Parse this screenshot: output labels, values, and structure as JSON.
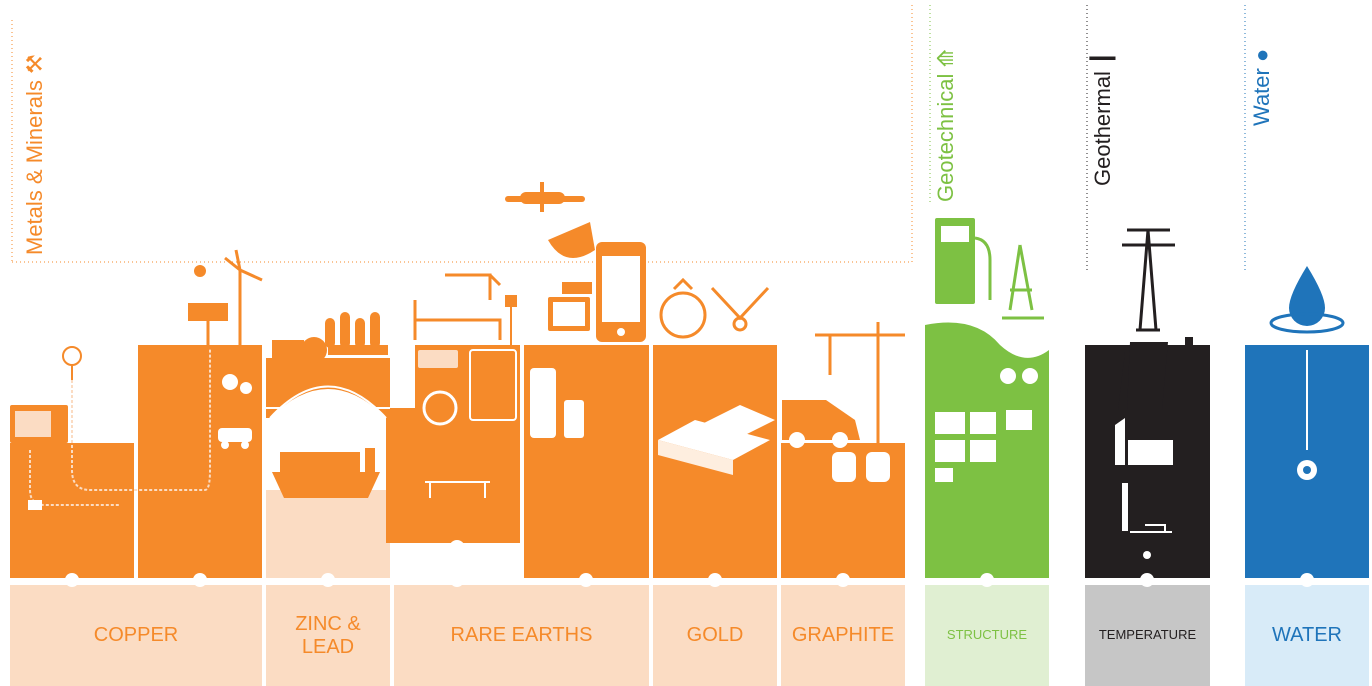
{
  "colors": {
    "metals": "#f58a2a",
    "metals_light": "#fbdcc3",
    "geotechnical": "#7dc143",
    "geotechnical_light": "#e0efd2",
    "geothermal": "#231f20",
    "geothermal_light": "#c6c6c6",
    "water": "#1f74ba",
    "water_light": "#d8ebf8"
  },
  "sections": {
    "metals": "Metals & Minerals",
    "geotechnical": "Geotechnical",
    "geothermal": "Geothermal",
    "water": "Water"
  },
  "section_icons": [
    "pick-and-hammer-icon",
    "sprout-icon",
    "drill-rig-icon",
    "water-drop-icon"
  ],
  "labels": {
    "copper": "COPPER",
    "zinc_line1": "ZINC &",
    "zinc_line2": "LEAD",
    "rare_earths": "RARE EARTHS",
    "gold": "GOLD",
    "graphite": "GRAPHITE",
    "structure": "STRUCTURE",
    "temperature": "TEMPERATURE",
    "water": "WATER"
  }
}
